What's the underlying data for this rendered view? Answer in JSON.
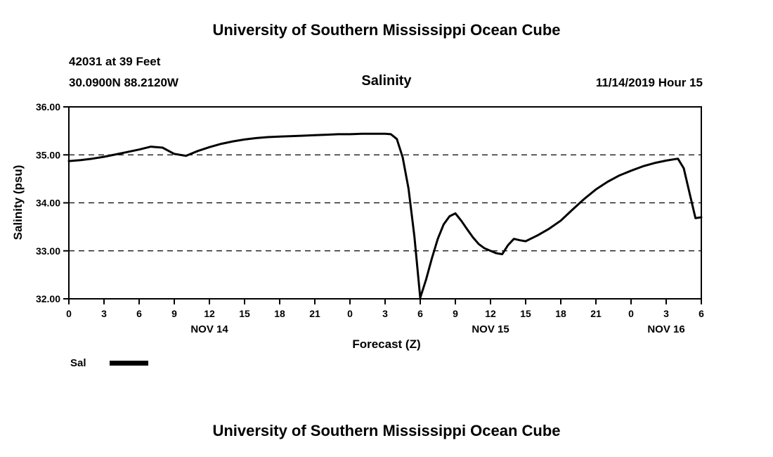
{
  "page": {
    "top_title": "University of Southern Mississippi Ocean Cube",
    "bottom_title": "University of Southern Mississippi Ocean Cube"
  },
  "header": {
    "station": "42031 at 39 Feet",
    "coordinates": "30.0900N 88.2120W",
    "chart_title": "Salinity",
    "datetime": "11/14/2019 Hour 15"
  },
  "legend": {
    "label": "Sal"
  },
  "colors": {
    "line": "#000000",
    "background": "#ffffff"
  },
  "chart_data": {
    "type": "line",
    "title": "Salinity",
    "xlabel": "Forecast (Z)",
    "ylabel": "Salinity (psu)",
    "ylim": [
      32.0,
      36.0
    ],
    "x_range": [
      0,
      54
    ],
    "yticks": [
      32.0,
      33.0,
      34.0,
      35.0,
      36.0
    ],
    "ytick_labels": [
      "32.00",
      "33.00",
      "34.00",
      "35.00",
      "36.00"
    ],
    "gridlines_y": [
      33.0,
      34.0,
      35.0
    ],
    "grid_style": "dashed",
    "legend_position": "bottom-left",
    "xticks": [
      {
        "h": 0,
        "label": "0"
      },
      {
        "h": 3,
        "label": "3"
      },
      {
        "h": 6,
        "label": "6"
      },
      {
        "h": 9,
        "label": "9"
      },
      {
        "h": 12,
        "label": "12"
      },
      {
        "h": 15,
        "label": "15"
      },
      {
        "h": 18,
        "label": "18"
      },
      {
        "h": 21,
        "label": "21"
      },
      {
        "h": 24,
        "label": "0"
      },
      {
        "h": 27,
        "label": "3"
      },
      {
        "h": 30,
        "label": "6"
      },
      {
        "h": 33,
        "label": "9"
      },
      {
        "h": 36,
        "label": "12"
      },
      {
        "h": 39,
        "label": "15"
      },
      {
        "h": 42,
        "label": "18"
      },
      {
        "h": 45,
        "label": "21"
      },
      {
        "h": 48,
        "label": "0"
      },
      {
        "h": 51,
        "label": "3"
      },
      {
        "h": 54,
        "label": "6"
      }
    ],
    "date_labels": [
      {
        "h": 12,
        "label": "NOV 14"
      },
      {
        "h": 36,
        "label": "NOV 15"
      },
      {
        "h": 51,
        "label": "NOV 16"
      }
    ],
    "series": [
      {
        "name": "Sal",
        "x": [
          0,
          1,
          2,
          3,
          4,
          5,
          6,
          7,
          8,
          9,
          10,
          11,
          12,
          13,
          14,
          15,
          16,
          17,
          18,
          19,
          20,
          21,
          22,
          23,
          24,
          25,
          26,
          27,
          27.5,
          28,
          28.5,
          29,
          29.5,
          30,
          30.5,
          31,
          31.5,
          32,
          32.5,
          33,
          33.5,
          34,
          34.5,
          35,
          35.5,
          36,
          36.5,
          37,
          37.5,
          38,
          38.5,
          39,
          40,
          41,
          42,
          43,
          44,
          45,
          46,
          47,
          48,
          49,
          50,
          51,
          52,
          52.5,
          53,
          53.5,
          54
        ],
        "values": [
          34.87,
          34.89,
          34.92,
          34.96,
          35.01,
          35.06,
          35.11,
          35.17,
          35.15,
          35.02,
          34.98,
          35.08,
          35.16,
          35.23,
          35.28,
          35.32,
          35.35,
          35.37,
          35.38,
          35.39,
          35.4,
          35.41,
          35.42,
          35.43,
          35.43,
          35.44,
          35.44,
          35.44,
          35.43,
          35.33,
          34.95,
          34.3,
          33.3,
          32.02,
          32.4,
          32.85,
          33.25,
          33.55,
          33.72,
          33.78,
          33.63,
          33.45,
          33.28,
          33.14,
          33.05,
          33.0,
          32.95,
          32.93,
          33.12,
          33.25,
          33.22,
          33.2,
          33.32,
          33.46,
          33.63,
          33.86,
          34.08,
          34.28,
          34.44,
          34.57,
          34.67,
          34.76,
          34.83,
          34.88,
          34.92,
          34.72,
          34.2,
          33.68,
          33.7
        ]
      }
    ]
  }
}
